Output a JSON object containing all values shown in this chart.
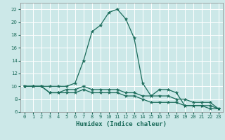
{
  "xlabel": "Humidex (Indice chaleur)",
  "background_color": "#cce8e8",
  "grid_color": "#ffffff",
  "line_color": "#1a6b5a",
  "xlim": [
    -0.5,
    23.5
  ],
  "ylim": [
    6,
    23
  ],
  "yticks": [
    6,
    8,
    10,
    12,
    14,
    16,
    18,
    20,
    22
  ],
  "xticks": [
    0,
    1,
    2,
    3,
    4,
    5,
    6,
    7,
    8,
    9,
    10,
    11,
    12,
    13,
    14,
    15,
    16,
    17,
    18,
    19,
    20,
    21,
    22,
    23
  ],
  "line1_x": [
    0,
    1,
    2,
    3,
    4,
    5,
    6,
    7,
    8,
    9,
    10,
    11,
    12,
    13,
    14,
    15,
    16,
    17,
    18,
    19,
    20,
    21,
    22,
    23
  ],
  "line1_y": [
    10,
    10,
    10,
    10,
    10,
    10,
    10.5,
    14,
    18.5,
    19.5,
    21.5,
    22,
    20.5,
    17.5,
    10.5,
    8.5,
    9.5,
    9.5,
    9,
    7,
    7,
    7,
    7,
    6.5
  ],
  "line2_x": [
    0,
    1,
    2,
    3,
    4,
    5,
    6,
    7,
    8,
    9,
    10,
    11,
    12,
    13,
    14,
    15,
    16,
    17,
    18,
    19,
    20,
    21,
    22,
    23
  ],
  "line2_y": [
    10,
    10,
    10,
    9,
    9,
    9.5,
    9.5,
    10,
    9.5,
    9.5,
    9.5,
    9.5,
    9,
    9,
    8.5,
    8.5,
    8.5,
    8.5,
    8,
    8,
    7.5,
    7.5,
    7.5,
    6.5
  ],
  "line3_x": [
    0,
    1,
    2,
    3,
    4,
    5,
    6,
    7,
    8,
    9,
    10,
    11,
    12,
    13,
    14,
    15,
    16,
    17,
    18,
    19,
    20,
    21,
    22,
    23
  ],
  "line3_y": [
    10,
    10,
    10,
    9,
    9,
    9,
    9,
    9.5,
    9,
    9,
    9,
    9,
    8.5,
    8.5,
    8,
    7.5,
    7.5,
    7.5,
    7.5,
    7,
    7,
    7,
    6.5,
    6.5
  ],
  "tick_color": "#1a6b5a",
  "label_fontsize": 5.0,
  "xlabel_fontsize": 6.5
}
